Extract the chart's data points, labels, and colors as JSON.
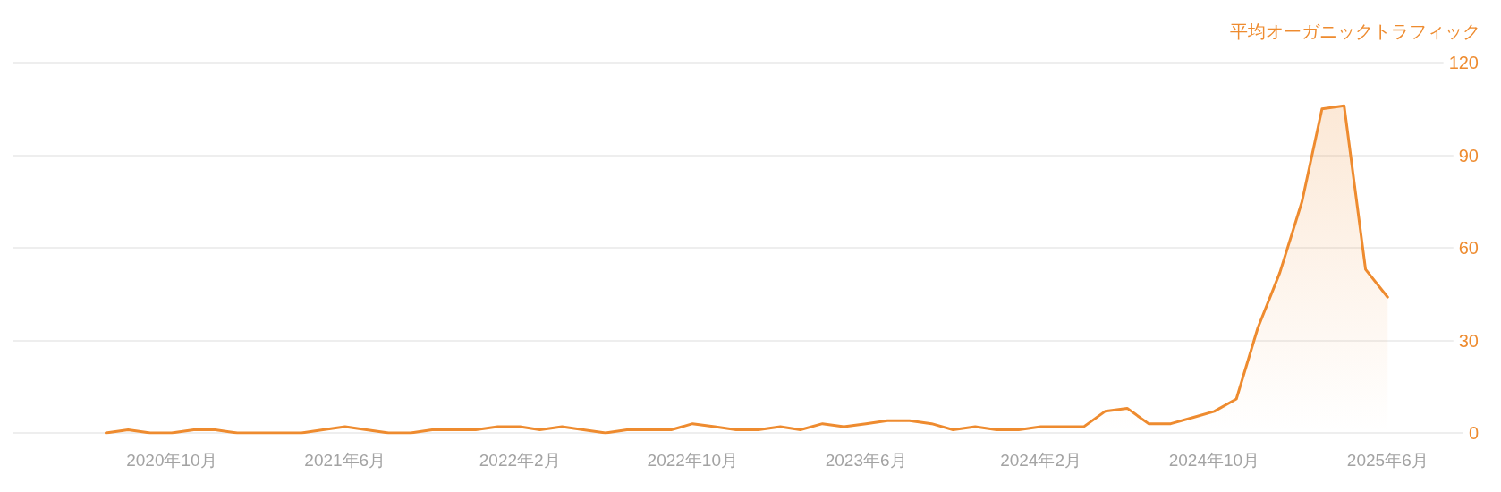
{
  "chart_data": {
    "type": "area",
    "ylabel": "平均オーガニックトラフィック",
    "x": [
      "2020-07",
      "2020-08",
      "2020-09",
      "2020-10",
      "2020-11",
      "2020-12",
      "2021-01",
      "2021-02",
      "2021-03",
      "2021-04",
      "2021-05",
      "2021-06",
      "2021-07",
      "2021-08",
      "2021-09",
      "2021-10",
      "2021-11",
      "2021-12",
      "2022-01",
      "2022-02",
      "2022-03",
      "2022-04",
      "2022-05",
      "2022-06",
      "2022-07",
      "2022-08",
      "2022-09",
      "2022-10",
      "2022-11",
      "2022-12",
      "2023-01",
      "2023-02",
      "2023-03",
      "2023-04",
      "2023-05",
      "2023-06",
      "2023-07",
      "2023-08",
      "2023-09",
      "2023-10",
      "2023-11",
      "2023-12",
      "2024-01",
      "2024-02",
      "2024-03",
      "2024-04",
      "2024-05",
      "2024-06",
      "2024-07",
      "2024-08",
      "2024-09",
      "2024-10",
      "2024-11",
      "2024-12",
      "2025-01",
      "2025-02",
      "2025-03",
      "2025-04",
      "2025-05",
      "2025-06"
    ],
    "series": [
      {
        "color": "#ee8b2f",
        "values": [
          0,
          1,
          0,
          0,
          1,
          1,
          0,
          0,
          0,
          0,
          1,
          2,
          1,
          0,
          0,
          1,
          1,
          1,
          2,
          2,
          1,
          2,
          1,
          0,
          1,
          1,
          1,
          3,
          2,
          1,
          1,
          2,
          1,
          3,
          2,
          3,
          4,
          4,
          3,
          1,
          2,
          1,
          1,
          2,
          2,
          2,
          7,
          8,
          3,
          3,
          5,
          7,
          11,
          34,
          52,
          75,
          105,
          106,
          53,
          44
        ]
      }
    ],
    "xlim": [
      "2020-02-21",
      "2025-10-09"
    ],
    "xticks": [
      {
        "value": "2020-10",
        "label": "2020年10月"
      },
      {
        "value": "2021-06",
        "label": "2021年6月"
      },
      {
        "value": "2022-02",
        "label": "2022年2月"
      },
      {
        "value": "2022-10",
        "label": "2022年10月"
      },
      {
        "value": "2023-06",
        "label": "2023年6月"
      },
      {
        "value": "2024-02",
        "label": "2024年2月"
      },
      {
        "value": "2024-10",
        "label": "2024年10月"
      },
      {
        "value": "2025-06",
        "label": "2025年6月"
      }
    ],
    "ylim": [
      0,
      120
    ],
    "yticks": [
      0,
      30,
      60,
      90,
      120
    ],
    "grid": "y",
    "marker": "none"
  }
}
